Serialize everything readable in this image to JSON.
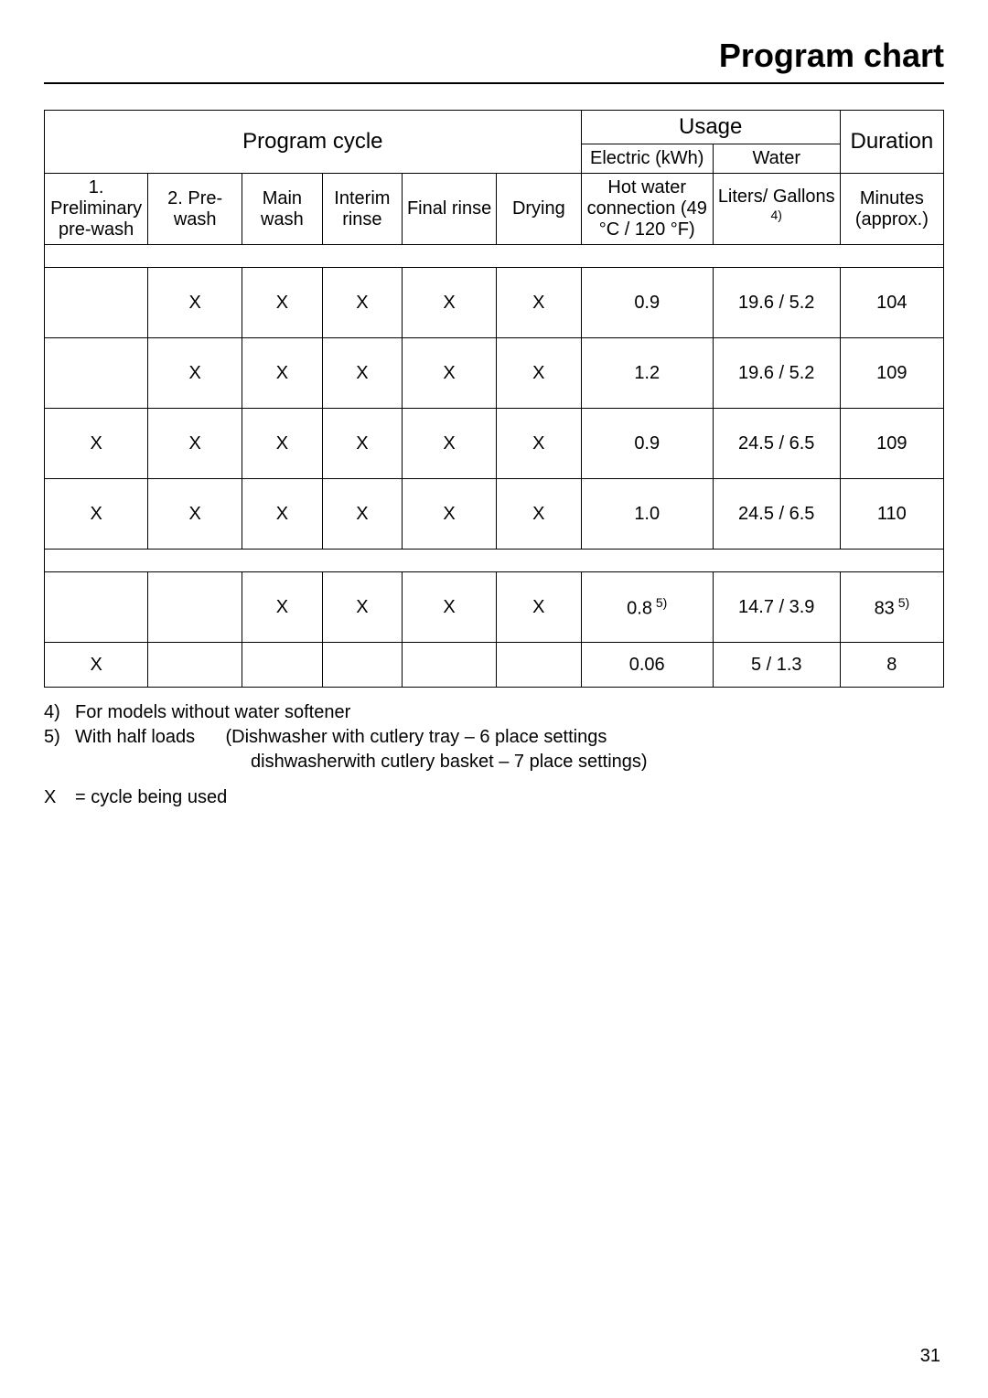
{
  "page_title": "Program chart",
  "page_number": "31",
  "headers": {
    "program_cycle": "Program cycle",
    "usage": "Usage",
    "duration": "Duration",
    "electric": "Electric (kWh)",
    "water": "Water",
    "col1": "1. Preliminary pre-wash",
    "col2": "2. Pre-wash",
    "col3": "Main wash",
    "col4": "Interim rinse",
    "col5": "Final rinse",
    "col6": "Drying",
    "col7": "Hot water connection (49 °C / 120 °F)",
    "col8_prefix": "Liters/ Gallons",
    "col8_sup": " 4)",
    "col9": "Minutes (approx.)"
  },
  "rows": [
    {
      "type": "spacer"
    },
    {
      "type": "data",
      "h": "tall",
      "c1": "",
      "c2": "X",
      "c3": "X",
      "c4": "X",
      "c5": "X",
      "c6": "X",
      "c7": "0.9",
      "c8": "19.6 / 5.2",
      "c9": "104"
    },
    {
      "type": "data",
      "h": "tall",
      "c1": "",
      "c2": "X",
      "c3": "X",
      "c4": "X",
      "c5": "X",
      "c6": "X",
      "c7": "1.2",
      "c8": "19.6 / 5.2",
      "c9": "109"
    },
    {
      "type": "data",
      "h": "tall",
      "c1": "X",
      "c2": "X",
      "c3": "X",
      "c4": "X",
      "c5": "X",
      "c6": "X",
      "c7": "0.9",
      "c8": "24.5 / 6.5",
      "c9": "109"
    },
    {
      "type": "data",
      "h": "tall",
      "c1": "X",
      "c2": "X",
      "c3": "X",
      "c4": "X",
      "c5": "X",
      "c6": "X",
      "c7": "1.0",
      "c8": "24.5 / 6.5",
      "c9": "110"
    },
    {
      "type": "spacer"
    },
    {
      "type": "data",
      "h": "tall",
      "c1": "",
      "c2": "",
      "c3": "X",
      "c4": "X",
      "c5": "X",
      "c6": "X",
      "c7": "0.8",
      "c7_sup": " 5)",
      "c8": "14.7 / 3.9",
      "c9": "83",
      "c9_sup": " 5)"
    },
    {
      "type": "data",
      "h": "short",
      "c1": "X",
      "c2": "",
      "c3": "",
      "c4": "",
      "c5": "",
      "c6": "",
      "c7": "0.06",
      "c8": "5 / 1.3",
      "c9": "8"
    }
  ],
  "footnotes": {
    "fn4_num": "4)",
    "fn4_text": "For models without water softener",
    "fn5_num": "5)",
    "fn5_line1": "With half loads      (Dishwasher with cutlery tray – 6 place settings",
    "fn5_line2": "dishwasherwith cutlery basket – 7 place settings)"
  },
  "legend": {
    "symbol": "X",
    "text": "= cycle being used"
  }
}
